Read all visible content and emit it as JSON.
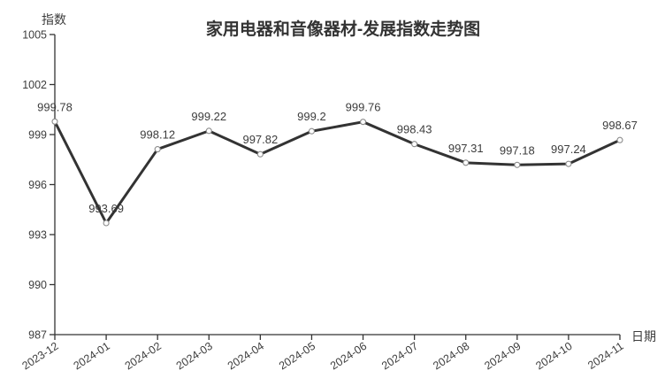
{
  "chart_data": {
    "type": "line",
    "title": "家用电器和音像器材-发展指数走势图",
    "xlabel": "日期",
    "ylabel": "指数",
    "categories": [
      "2023-12",
      "2024-01",
      "2024-02",
      "2024-03",
      "2024-04",
      "2024-05",
      "2024-06",
      "2024-07",
      "2024-08",
      "2024-09",
      "2024-10",
      "2024-11"
    ],
    "values": [
      999.78,
      993.69,
      998.12,
      999.22,
      997.82,
      999.2,
      999.76,
      998.43,
      997.31,
      997.18,
      997.24,
      998.67
    ],
    "point_labels": [
      "999.78",
      "993.69",
      "998.12",
      "999.22",
      "997.82",
      "999.2",
      "999.76",
      "998.43",
      "997.31",
      "997.18",
      "997.24",
      "998.67"
    ],
    "ylim": [
      987,
      1005
    ],
    "yticks": [
      987,
      990,
      993,
      996,
      999,
      1002,
      1005
    ],
    "grid": false,
    "legend": "none",
    "styles": {
      "line_color": "#333333",
      "marker_fill": "#ffffff",
      "marker_stroke": "#8a8a8a",
      "axis_color": "#333333",
      "text_color": "#3d3d3d",
      "background": "#ffffff"
    }
  }
}
